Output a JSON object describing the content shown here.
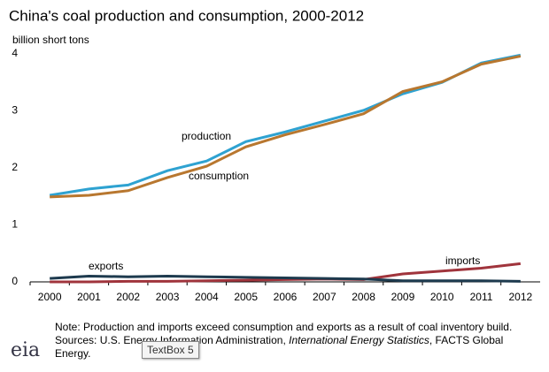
{
  "chart_data": {
    "type": "line",
    "title": "China's coal production and consumption, 2000-2012",
    "y_label": "billion short tons",
    "categories": [
      "2000",
      "2001",
      "2002",
      "2003",
      "2004",
      "2005",
      "2006",
      "2007",
      "2008",
      "2009",
      "2010",
      "2011",
      "2012"
    ],
    "series": [
      {
        "name": "production",
        "color": "#2ea2d1",
        "values": [
          1.52,
          1.63,
          1.7,
          1.95,
          2.12,
          2.46,
          2.63,
          2.82,
          3.01,
          3.3,
          3.5,
          3.84,
          3.98
        ]
      },
      {
        "name": "consumption",
        "color": "#b8772f",
        "values": [
          1.49,
          1.52,
          1.6,
          1.83,
          2.03,
          2.37,
          2.58,
          2.76,
          2.95,
          3.34,
          3.51,
          3.82,
          3.96
        ]
      },
      {
        "name": "imports",
        "color": "#a0343c",
        "values": [
          0.0,
          0.0,
          0.01,
          0.01,
          0.02,
          0.03,
          0.04,
          0.05,
          0.04,
          0.14,
          0.19,
          0.24,
          0.32
        ]
      },
      {
        "name": "exports",
        "color": "#1d3a4e",
        "values": [
          0.06,
          0.1,
          0.09,
          0.1,
          0.09,
          0.08,
          0.07,
          0.06,
          0.05,
          0.02,
          0.02,
          0.02,
          0.01
        ]
      }
    ],
    "ylim": [
      0,
      4
    ],
    "yticks": [
      0,
      1,
      2,
      3,
      4
    ],
    "grid": false,
    "note": "Note: Production and imports exceed consumption and exports as a result of coal inventory build.",
    "source_prefix": "Sources: U.S. Energy Information Administration, ",
    "source_italic": "International Energy Statistics",
    "source_suffix": ", FACTS Global Energy.",
    "logo": "eia",
    "tooltip": "TextBox 5"
  }
}
